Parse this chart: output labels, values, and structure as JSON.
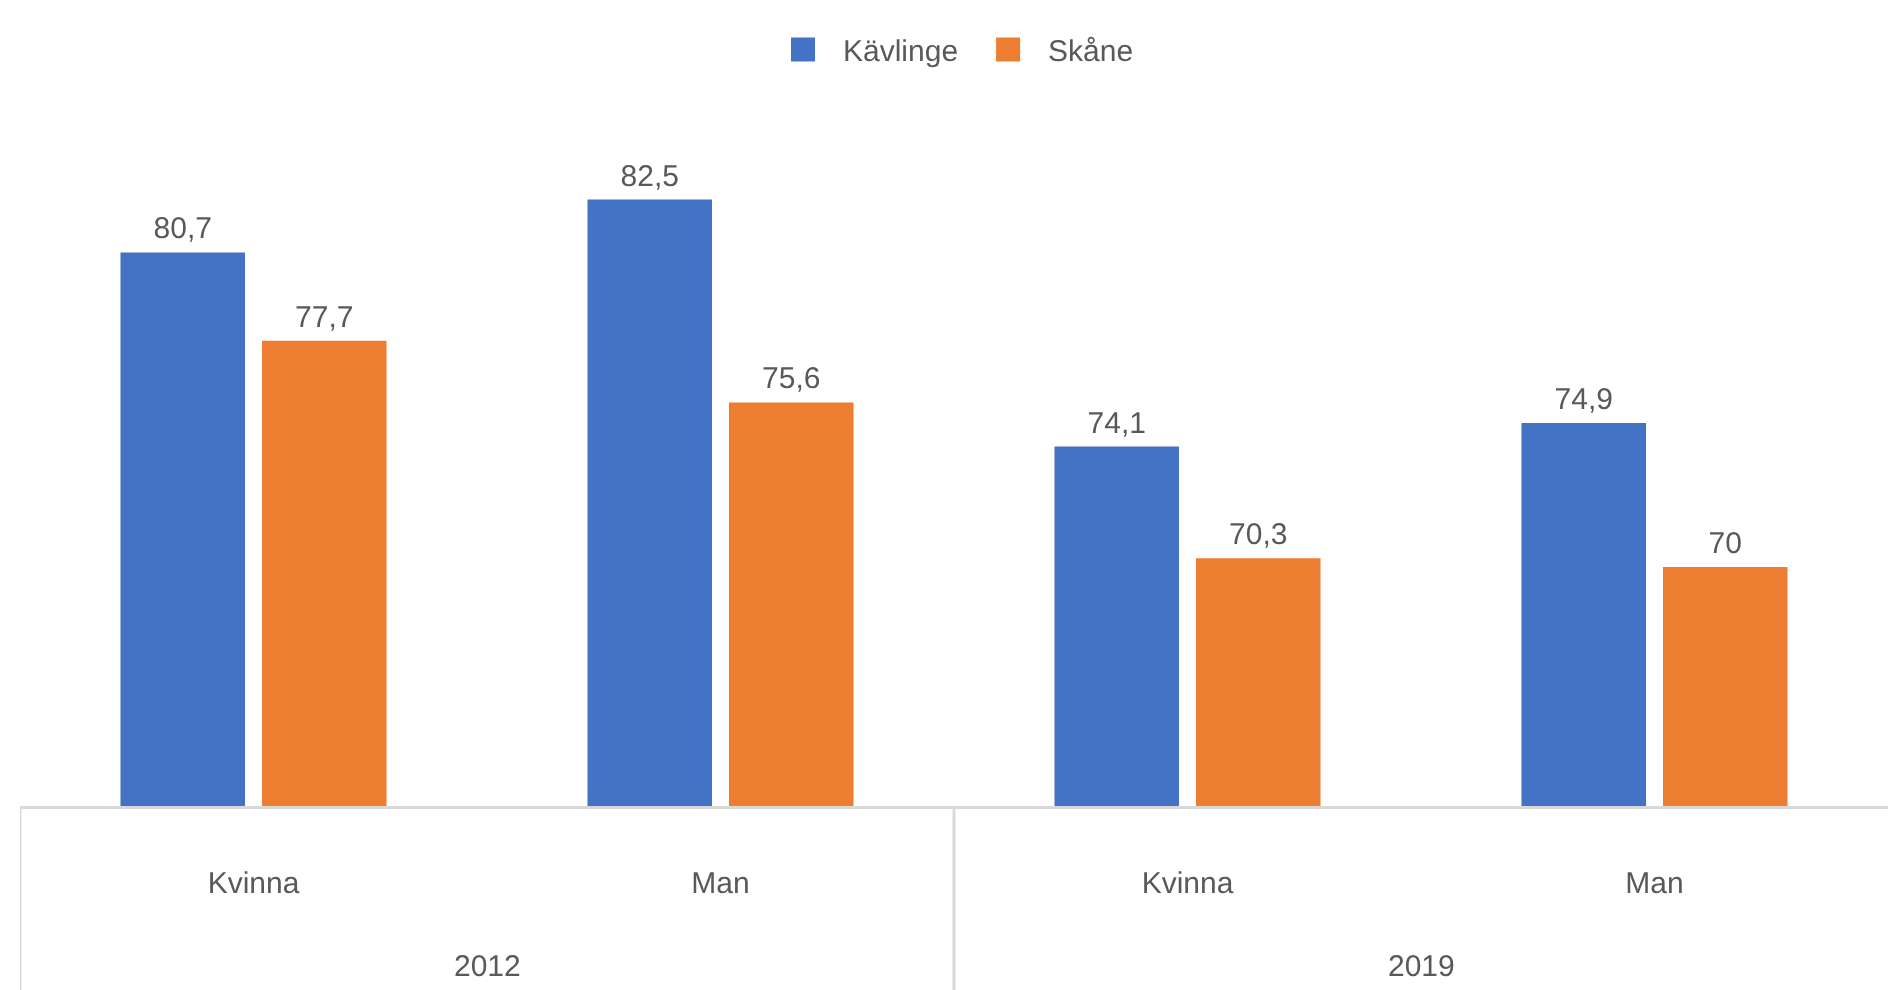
{
  "chart_data": {
    "type": "bar",
    "categories": [
      "Kvinna",
      "Man",
      "Kvinna",
      "Man"
    ],
    "series": [
      {
        "name": "Kävlinge",
        "color": "#4472c4",
        "values": [
          80.7,
          82.5,
          74.1,
          74.9
        ],
        "value_labels": [
          "80,7",
          "82,5",
          "74,1",
          "74,9"
        ]
      },
      {
        "name": "Skåne",
        "color": "#ed7d31",
        "values": [
          77.7,
          75.6,
          70.3,
          70
        ],
        "value_labels": [
          "77,7",
          "75,6",
          "70,3",
          "70"
        ]
      }
    ],
    "annotations": [
      "2012",
      "2019"
    ],
    "legend": "top",
    "grid": false
  }
}
